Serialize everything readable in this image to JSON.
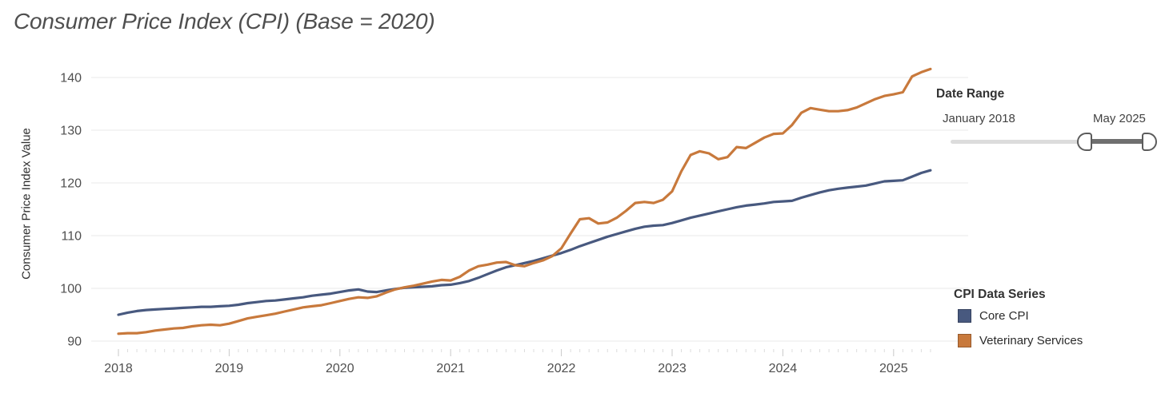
{
  "chart_data": {
    "type": "line",
    "title": "Consumer Price Index (CPI) (Base = 2020)",
    "ylabel": "Consumer Price Index Value",
    "xlabel": "",
    "x_unit": "month",
    "x_range": [
      "2018-01",
      "2025-05"
    ],
    "x_tick_labels": [
      "2018",
      "2019",
      "2020",
      "2021",
      "2022",
      "2023",
      "2024",
      "2025"
    ],
    "y_ticks": [
      90,
      100,
      110,
      120,
      130,
      140
    ],
    "ylim": [
      87,
      144
    ],
    "grid": true,
    "legend_title": "CPI Data Series",
    "legend_position": "right-bottom",
    "series": [
      {
        "name": "Core CPI",
        "color": "#48597f",
        "values": [
          95.0,
          95.4,
          95.7,
          95.9,
          96.0,
          96.1,
          96.2,
          96.3,
          96.4,
          96.5,
          96.5,
          96.6,
          96.7,
          96.9,
          97.2,
          97.4,
          97.6,
          97.7,
          97.9,
          98.1,
          98.3,
          98.6,
          98.8,
          99.0,
          99.3,
          99.6,
          99.8,
          99.4,
          99.3,
          99.6,
          99.9,
          100.1,
          100.2,
          100.3,
          100.4,
          100.6,
          100.7,
          101.0,
          101.4,
          102.0,
          102.7,
          103.4,
          104.0,
          104.4,
          104.8,
          105.2,
          105.7,
          106.2,
          106.7,
          107.3,
          108.0,
          108.6,
          109.2,
          109.8,
          110.3,
          110.8,
          111.3,
          111.7,
          111.9,
          112.0,
          112.4,
          112.9,
          113.4,
          113.8,
          114.2,
          114.6,
          115.0,
          115.4,
          115.7,
          115.9,
          116.1,
          116.4,
          116.5,
          116.6,
          117.2,
          117.7,
          118.2,
          118.6,
          118.9,
          119.1,
          119.3,
          119.5,
          119.9,
          120.3,
          120.4,
          120.5,
          121.2,
          121.9,
          122.4
        ]
      },
      {
        "name": "Veterinary Services",
        "color": "#c8793c",
        "values": [
          91.4,
          91.5,
          91.5,
          91.7,
          92.0,
          92.2,
          92.4,
          92.5,
          92.8,
          93.0,
          93.1,
          93.0,
          93.3,
          93.8,
          94.3,
          94.6,
          94.9,
          95.2,
          95.6,
          96.0,
          96.4,
          96.6,
          96.8,
          97.2,
          97.6,
          98.0,
          98.3,
          98.2,
          98.5,
          99.2,
          99.8,
          100.2,
          100.5,
          100.9,
          101.3,
          101.6,
          101.5,
          102.2,
          103.4,
          104.2,
          104.5,
          104.9,
          105.0,
          104.4,
          104.2,
          104.8,
          105.3,
          106.1,
          107.6,
          110.4,
          113.1,
          113.3,
          112.3,
          112.5,
          113.4,
          114.7,
          116.2,
          116.4,
          116.2,
          116.8,
          118.4,
          122.2,
          125.3,
          126.0,
          125.6,
          124.5,
          124.9,
          126.8,
          126.6,
          127.6,
          128.6,
          129.3,
          129.4,
          131.0,
          133.3,
          134.2,
          133.9,
          133.6,
          133.6,
          133.8,
          134.3,
          135.1,
          135.9,
          136.5,
          136.8,
          137.2,
          140.2,
          141.0,
          141.6
        ]
      }
    ]
  },
  "filters": {
    "date_range": {
      "title": "Date Range",
      "start_label": "January 2018",
      "end_label": "May 2025"
    }
  },
  "style": {
    "gridline_color": "#e9e9e9",
    "tick_color": "#c9c9c9",
    "axis_text_color": "#4f4f4f"
  }
}
